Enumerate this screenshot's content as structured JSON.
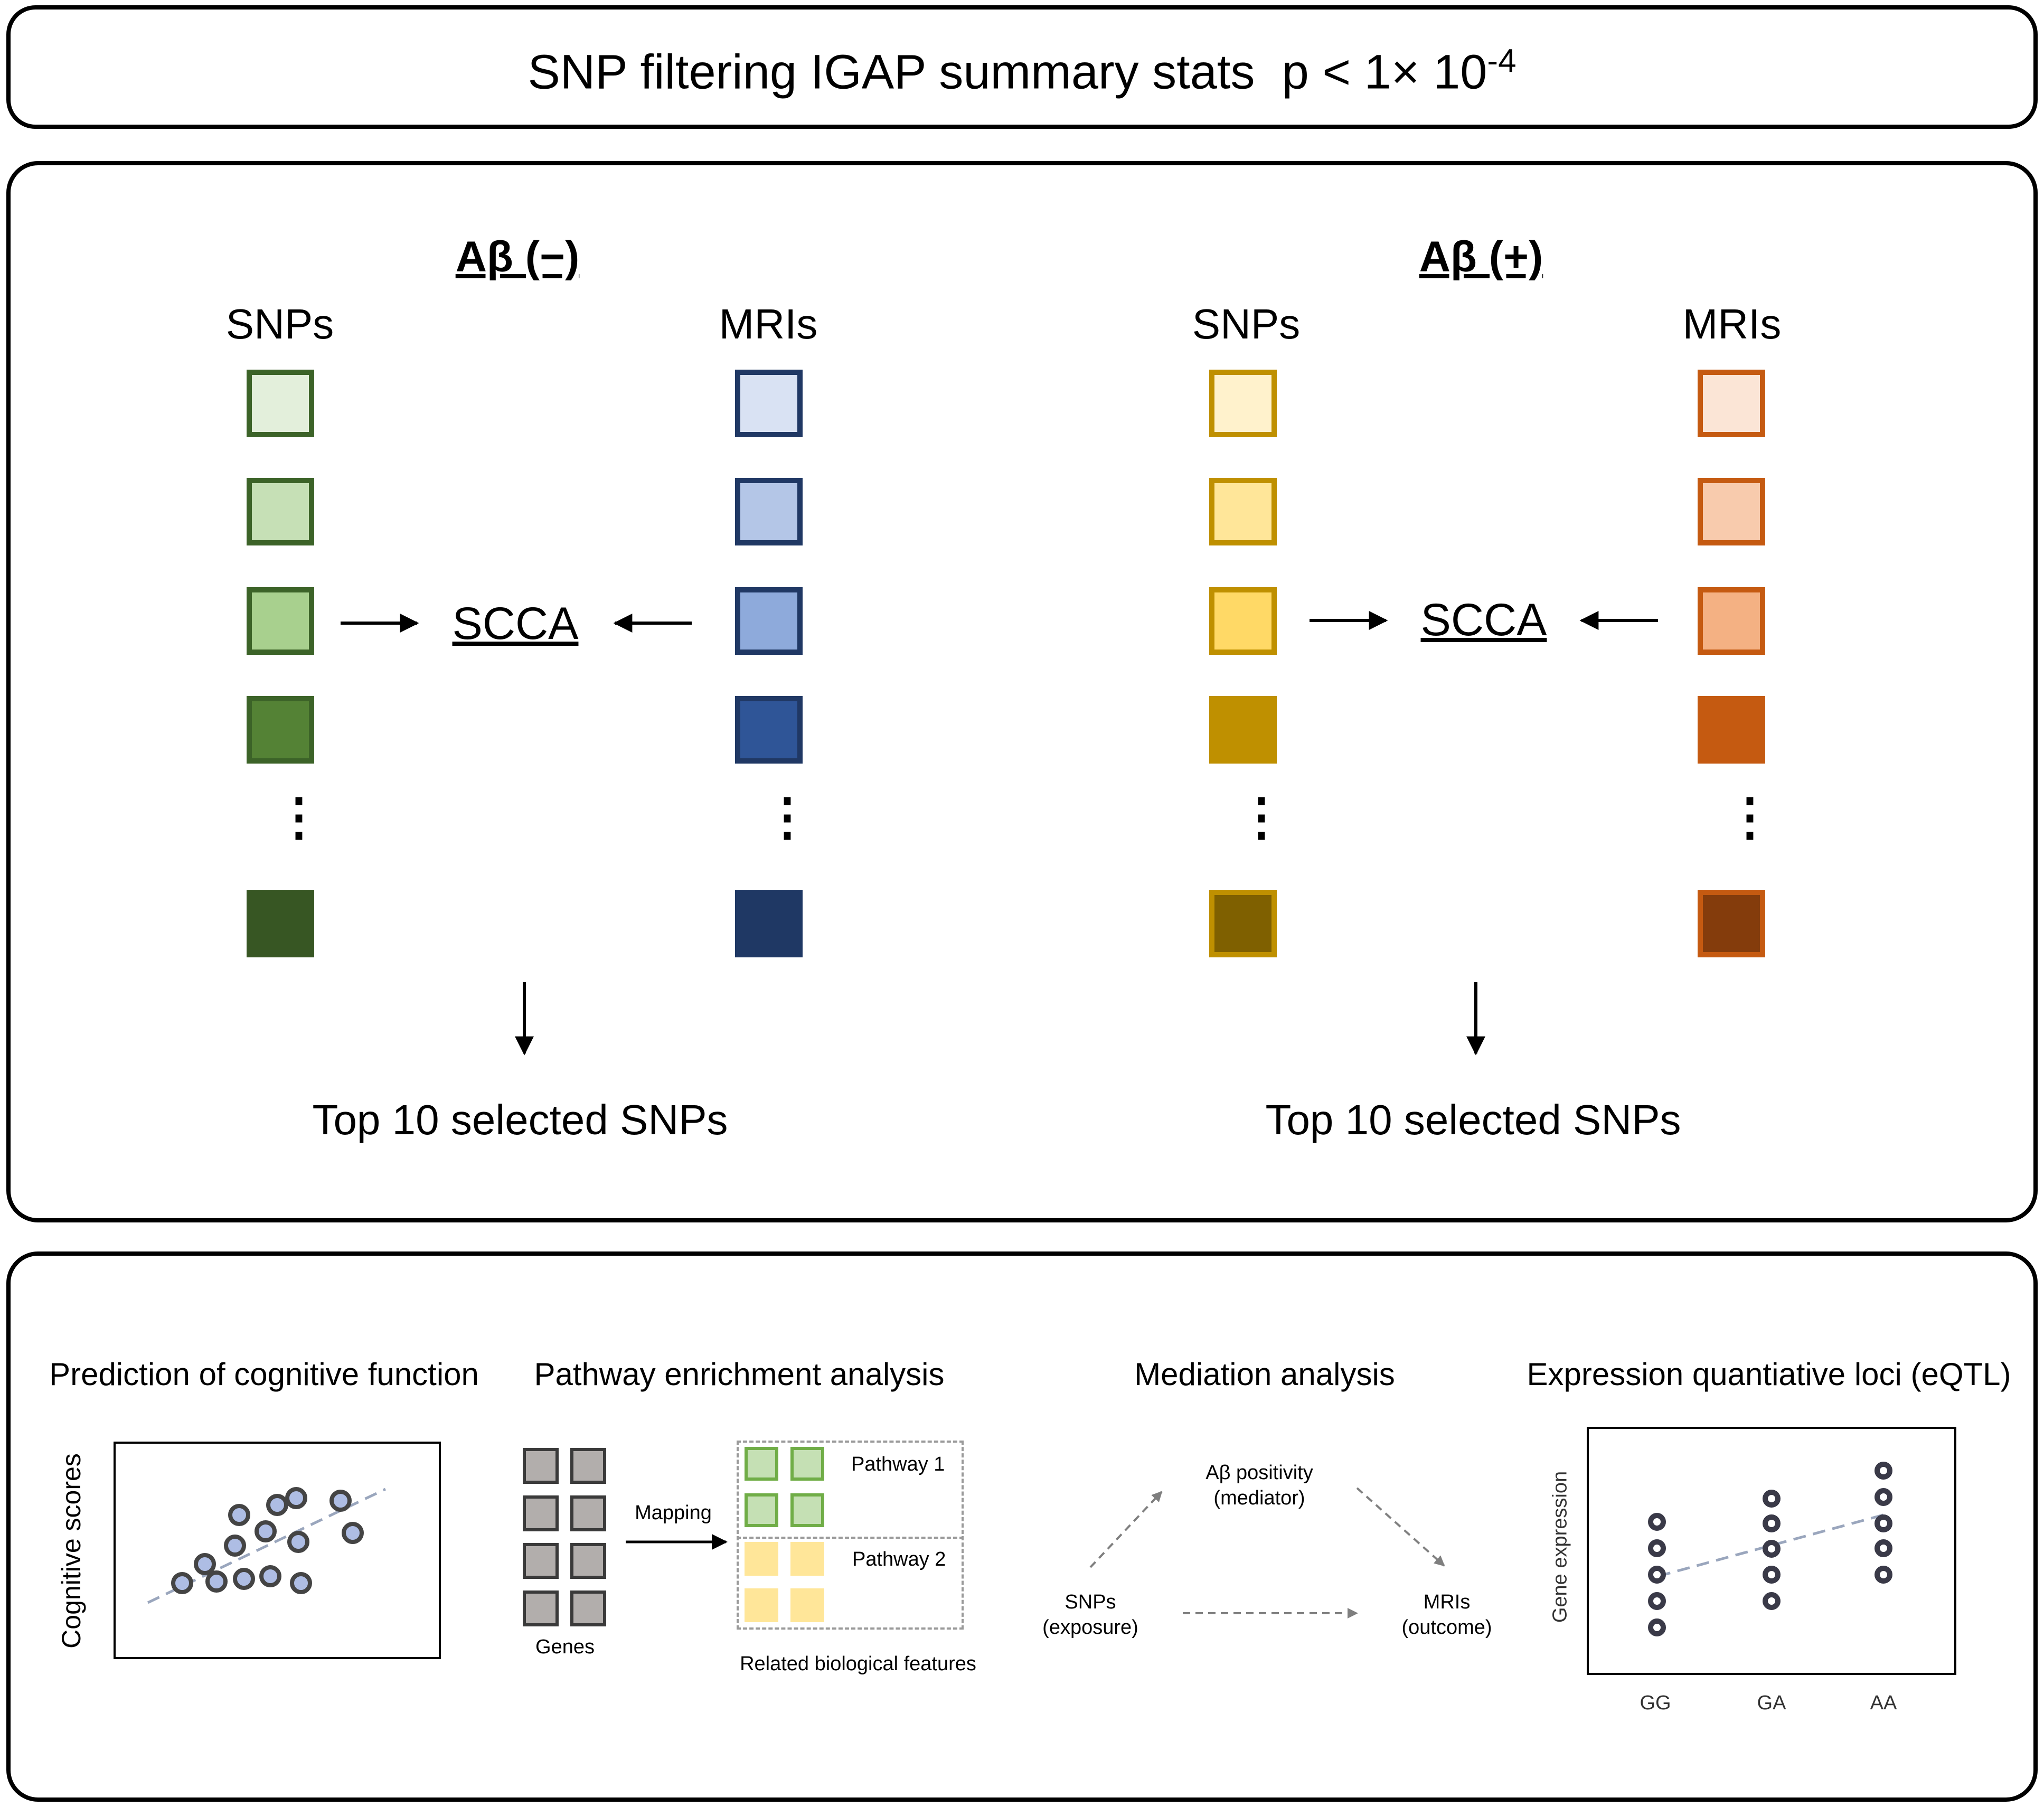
{
  "top_panel": {
    "title_main": "SNP filtering IGAP summary stats",
    "title_p": "p < 1× 10",
    "title_exp": "-4"
  },
  "middle_panel": {
    "groups": [
      {
        "header": "Aβ (−)",
        "snps_label": "SNPs",
        "mris_label": "MRIs",
        "method": "SCCA",
        "result": "Top 10 selected SNPs",
        "snp_colors": [
          {
            "fill": "#e3efdb",
            "border": "#3c6328"
          },
          {
            "fill": "#c6e0b6",
            "border": "#3c6328"
          },
          {
            "fill": "#a8d08e",
            "border": "#3c6328"
          },
          {
            "fill": "#548235",
            "border": "#3c6328"
          },
          {
            "fill": "#375623",
            "border": "#375623"
          }
        ],
        "mri_colors": [
          {
            "fill": "#d9e2f3",
            "border": "#203864"
          },
          {
            "fill": "#b4c6e7",
            "border": "#203864"
          },
          {
            "fill": "#8eaadb",
            "border": "#203864"
          },
          {
            "fill": "#2f5597",
            "border": "#203864"
          },
          {
            "fill": "#1f3864",
            "border": "#1f3864"
          }
        ]
      },
      {
        "header": "Aβ (+)",
        "snps_label": "SNPs",
        "mris_label": "MRIs",
        "method": "SCCA",
        "result": "Top 10 selected SNPs",
        "snp_colors": [
          {
            "fill": "#fff2cc",
            "border": "#bf9000"
          },
          {
            "fill": "#ffe699",
            "border": "#bf9000"
          },
          {
            "fill": "#ffd966",
            "border": "#bf9000"
          },
          {
            "fill": "#bf9000",
            "border": "#bf9000"
          },
          {
            "fill": "#7f6000",
            "border": "#bf9000"
          }
        ],
        "mri_colors": [
          {
            "fill": "#fbe5d6",
            "border": "#c55a11"
          },
          {
            "fill": "#f8cbad",
            "border": "#c55a11"
          },
          {
            "fill": "#f4b183",
            "border": "#c55a11"
          },
          {
            "fill": "#c55a11",
            "border": "#c55a11"
          },
          {
            "fill": "#843c0c",
            "border": "#c55a11"
          }
        ]
      }
    ]
  },
  "bottom_panel": {
    "prediction": {
      "title": "Prediction of cognitive function",
      "ylabel": "Cognitive scores",
      "point_color": "#aebde4"
    },
    "pathway": {
      "title": "Pathway enrichment analysis",
      "genes_label": "Genes",
      "mapping_label": "Mapping",
      "pathway1_label": "Pathway 1",
      "pathway2_label": "Pathway 2",
      "features_label": "Related biological features"
    },
    "mediation": {
      "title": "Mediation analysis",
      "mediator_line1": "Aβ positivity",
      "mediator_line2": "(mediator)",
      "exposure_line1": "SNPs",
      "exposure_line2": "(exposure)",
      "outcome_line1": "MRIs",
      "outcome_line2": "(outcome)"
    },
    "eqtl": {
      "title": "Expression quantiative loci (eQTL)",
      "ylabel": "Gene expression",
      "x_labels": [
        "GG",
        "GA",
        "AA"
      ]
    }
  }
}
